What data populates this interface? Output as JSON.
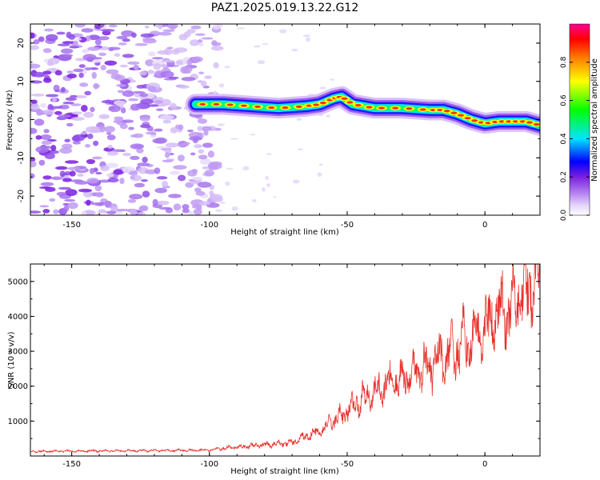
{
  "title": "PAZ1.2025.019.13.22.G12",
  "chart_data": [
    {
      "type": "heatmap",
      "xlabel": "Height of straight line (km)",
      "ylabel": "Frequency (Hz)",
      "xlim": [
        -165,
        20
      ],
      "ylim": [
        -25,
        25
      ],
      "xticks": [
        -150,
        -100,
        -50,
        0
      ],
      "yticks": [
        -20,
        -10,
        0,
        10,
        20
      ],
      "colorbar": {
        "label": "Normalized spectral amplitude",
        "range": [
          0,
          1
        ],
        "ticks": [
          0.0,
          0.2,
          0.4,
          0.6,
          0.8
        ],
        "tick_labels": [
          "0.0",
          "0.2",
          "0.4",
          "0.6",
          "0.8"
        ],
        "colors": [
          "#ffffff",
          "#c6a3f5",
          "#8a2be2",
          "#0000ff",
          "#00e5ff",
          "#00ff00",
          "#ffff00",
          "#ff8000",
          "#ff0000",
          "#ff0090"
        ]
      },
      "ridge": {
        "x": [
          -105,
          -95,
          -85,
          -75,
          -65,
          -60,
          -55,
          -52,
          -48,
          -40,
          -30,
          -20,
          -15,
          -10,
          -5,
          0,
          5,
          10,
          15,
          20
        ],
        "freq": [
          4,
          4,
          3.5,
          3,
          3.5,
          4,
          5.5,
          6,
          4,
          3,
          3,
          2.5,
          2.5,
          1.5,
          0,
          -1,
          -0.5,
          -0.5,
          -0.5,
          -1.5
        ]
      },
      "noise_region_x": [
        -165,
        -105
      ]
    },
    {
      "type": "line",
      "xlabel": "Height of straight line (km)",
      "ylabel": "SNR (10 * v/v)",
      "xlim": [
        -165,
        20
      ],
      "ylim": [
        0,
        5500
      ],
      "xticks": [
        -150,
        -100,
        -50,
        0
      ],
      "yticks": [
        1000,
        2000,
        3000,
        4000,
        5000
      ],
      "color": "#e8302a",
      "series": [
        {
          "x": [
            -165,
            -150,
            -130,
            -110,
            -100,
            -90,
            -80,
            -70,
            -65,
            -60,
            -55,
            -50,
            -45,
            -40,
            -35,
            -30,
            -25,
            -20,
            -15,
            -10,
            -5,
            0,
            5,
            10,
            15,
            20
          ],
          "values": [
            130,
            140,
            150,
            160,
            170,
            260,
            320,
            380,
            560,
            700,
            1000,
            1300,
            1650,
            1800,
            2050,
            2200,
            2450,
            2600,
            2850,
            3050,
            3350,
            3700,
            4000,
            4300,
            4800,
            5000
          ]
        }
      ]
    }
  ]
}
